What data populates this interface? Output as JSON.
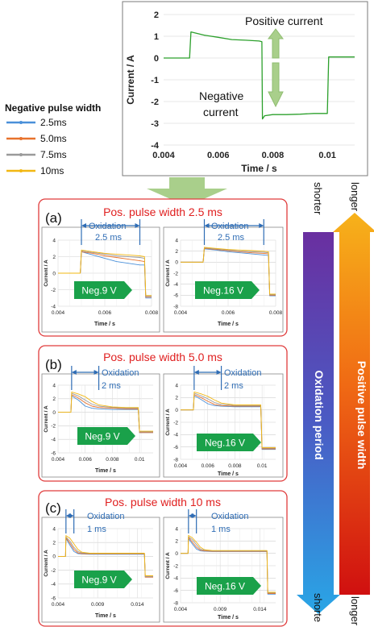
{
  "figure": {
    "legend": {
      "title": "Negative pulse width",
      "items": [
        {
          "label": "2.5ms",
          "color": "#4a90d9"
        },
        {
          "label": "5.0ms",
          "color": "#e8722c"
        },
        {
          "label": "7.5ms",
          "color": "#9a9a9a"
        },
        {
          "label": "10ms",
          "color": "#f2b712"
        }
      ]
    },
    "top_annotations": {
      "positive": "Positive current",
      "negative_line1": "Negative",
      "negative_line2": "current"
    },
    "panels": [
      {
        "letter": "(a)",
        "title": "Pos. pulse width 2.5 ms",
        "oxidation_label": "Oxidation",
        "oxidation_value": "2.5 ms",
        "charts": [
          {
            "callout": "Neg.9 V"
          },
          {
            "callout": "Neg.16 V"
          }
        ]
      },
      {
        "letter": "(b)",
        "title": "Pos. pulse width 5.0 ms",
        "oxidation_label": "Oxidation",
        "oxidation_value": "2 ms",
        "charts": [
          {
            "callout": "Neg.9 V"
          },
          {
            "callout": "Neg.16 V"
          }
        ]
      },
      {
        "letter": "(c)",
        "title": "Pos. pulse width 10 ms",
        "oxidation_label": "Oxidation",
        "oxidation_value": "1 ms",
        "charts": [
          {
            "callout": "Neg.9 V"
          },
          {
            "callout": "Neg.16 V"
          }
        ]
      }
    ],
    "arrows": {
      "left": {
        "label": "Oxidation period",
        "top": "shorter",
        "bottom": "shorte"
      },
      "right": {
        "label": "Positive pulse width",
        "top": "longer",
        "bottom": "longer"
      }
    },
    "colors": {
      "panel_border": "#e03c3c",
      "title_red": "#e02020",
      "oxidation_blue": "#2f6db5",
      "callout_green": "#1aa14a",
      "main_trace": "#2ca02c"
    }
  },
  "chart_data": [
    {
      "id": "main",
      "type": "line",
      "xlabel": "Time / s",
      "ylabel": "Current / A",
      "xlim": [
        0.004,
        0.011
      ],
      "ylim": [
        -4,
        2
      ],
      "xticks": [
        "0.004",
        "0.006",
        "0.008",
        "0.01"
      ],
      "yticks": [
        "-4",
        "-3",
        "-2",
        "-1",
        "0",
        "1",
        "2"
      ],
      "grid": "horizontal",
      "series": [
        {
          "color": "#2ca02c",
          "x": [
            0.004,
            0.0049,
            0.00495,
            0.005,
            0.0055,
            0.006,
            0.0065,
            0.007,
            0.0075,
            0.0076,
            0.00762,
            0.0077,
            0.008,
            0.0085,
            0.009,
            0.0095,
            0.0099,
            0.01,
            0.01005,
            0.0105,
            0.011
          ],
          "y": [
            0.0,
            0.0,
            0.0,
            1.2,
            1.05,
            0.95,
            0.85,
            0.82,
            0.78,
            0.75,
            -2.8,
            -2.65,
            -2.6,
            -2.6,
            -2.58,
            -2.55,
            -2.55,
            -2.55,
            0.05,
            0.05,
            0.05
          ]
        }
      ]
    },
    {
      "id": "a1",
      "type": "line",
      "xlabel": "Time / s",
      "ylabel": "Current / A",
      "xlim": [
        0.004,
        0.008
      ],
      "ylim": [
        -4,
        4
      ],
      "xticks": [
        "0.004",
        "0.006",
        "0.008"
      ],
      "yticks": [
        "-4",
        "-2",
        "0",
        "2",
        "4"
      ],
      "grid": "both",
      "series": [
        {
          "name": "2.5ms",
          "color": "#4a90d9",
          "x": [
            0.004,
            0.00495,
            0.005,
            0.0055,
            0.006,
            0.0065,
            0.007,
            0.0075,
            0.0077,
            0.00775,
            0.008
          ],
          "y": [
            0,
            0,
            2.6,
            2.2,
            1.8,
            1.4,
            1.2,
            1.0,
            1.0,
            -3.0,
            -3.0
          ]
        },
        {
          "name": "5.0ms",
          "color": "#e8722c",
          "x": [
            0.004,
            0.00495,
            0.005,
            0.0055,
            0.006,
            0.0065,
            0.007,
            0.0075,
            0.0077,
            0.00775,
            0.008
          ],
          "y": [
            0,
            0,
            2.6,
            2.4,
            2.1,
            1.9,
            1.7,
            1.5,
            1.4,
            -2.9,
            -2.9
          ]
        },
        {
          "name": "7.5ms",
          "color": "#9a9a9a",
          "x": [
            0.004,
            0.00495,
            0.005,
            0.0055,
            0.006,
            0.0065,
            0.007,
            0.0075,
            0.0077,
            0.00775,
            0.008
          ],
          "y": [
            0,
            0,
            2.7,
            2.5,
            2.3,
            2.1,
            2.0,
            1.9,
            1.8,
            -2.8,
            -2.8
          ]
        },
        {
          "name": "10ms",
          "color": "#f2b712",
          "x": [
            0.004,
            0.00495,
            0.005,
            0.0055,
            0.006,
            0.0065,
            0.007,
            0.0075,
            0.0077,
            0.00775,
            0.008
          ],
          "y": [
            0,
            0,
            2.8,
            2.6,
            2.4,
            2.3,
            2.2,
            2.1,
            2.0,
            -2.7,
            -2.7
          ]
        }
      ]
    },
    {
      "id": "a2",
      "type": "line",
      "xlabel": "Time / s",
      "ylabel": "Current / A",
      "xlim": [
        0.004,
        0.008
      ],
      "ylim": [
        -8,
        4
      ],
      "xticks": [
        "0.004",
        "0.006",
        "0.008"
      ],
      "yticks": [
        "-8",
        "-6",
        "-4",
        "-2",
        "0",
        "2",
        "4"
      ],
      "grid": "both",
      "series": [
        {
          "name": "2.5ms",
          "color": "#4a90d9",
          "x": [
            0.004,
            0.00495,
            0.005,
            0.0055,
            0.006,
            0.0065,
            0.007,
            0.0075,
            0.0077,
            0.00775,
            0.008
          ],
          "y": [
            0,
            0,
            2.4,
            2.2,
            1.9,
            1.7,
            1.5,
            1.3,
            1.2,
            -6.1,
            -6.1
          ]
        },
        {
          "name": "5.0ms",
          "color": "#e8722c",
          "x": [
            0.004,
            0.00495,
            0.005,
            0.0055,
            0.006,
            0.0065,
            0.007,
            0.0075,
            0.0077,
            0.00775,
            0.008
          ],
          "y": [
            0,
            0,
            2.5,
            2.3,
            2.1,
            1.9,
            1.7,
            1.6,
            1.5,
            -6.0,
            -6.0
          ]
        },
        {
          "name": "7.5ms",
          "color": "#9a9a9a",
          "x": [
            0.004,
            0.00495,
            0.005,
            0.0055,
            0.006,
            0.0065,
            0.007,
            0.0075,
            0.0077,
            0.00775,
            0.008
          ],
          "y": [
            0,
            0,
            2.6,
            2.4,
            2.2,
            2.0,
            1.9,
            1.8,
            1.7,
            -5.9,
            -5.9
          ]
        },
        {
          "name": "10ms",
          "color": "#f2b712",
          "x": [
            0.004,
            0.00495,
            0.005,
            0.0055,
            0.006,
            0.0065,
            0.007,
            0.0075,
            0.0077,
            0.00775,
            0.008
          ],
          "y": [
            0,
            0,
            2.7,
            2.5,
            2.3,
            2.2,
            2.1,
            2.0,
            1.9,
            -5.8,
            -5.8
          ]
        }
      ]
    },
    {
      "id": "b1",
      "type": "line",
      "xlabel": "Time / s",
      "ylabel": "Current / A",
      "xlim": [
        0.004,
        0.011
      ],
      "ylim": [
        -6,
        4
      ],
      "xticks": [
        "0.004",
        "0.006",
        "0.008",
        "0.01"
      ],
      "yticks": [
        "-6",
        "-4",
        "-2",
        "0",
        "2",
        "4"
      ],
      "grid": "both",
      "series": [
        {
          "name": "2.5ms",
          "color": "#4a90d9",
          "x": [
            0.004,
            0.00495,
            0.005,
            0.0055,
            0.006,
            0.0065,
            0.007,
            0.008,
            0.009,
            0.0099,
            0.01,
            0.011
          ],
          "y": [
            0,
            0,
            2.4,
            1.8,
            0.9,
            0.6,
            0.5,
            0.4,
            0.4,
            0.4,
            -3.0,
            -3.0
          ]
        },
        {
          "name": "5.0ms",
          "color": "#e8722c",
          "x": [
            0.004,
            0.00495,
            0.005,
            0.0055,
            0.006,
            0.0065,
            0.007,
            0.008,
            0.009,
            0.0099,
            0.01,
            0.011
          ],
          "y": [
            0,
            0,
            2.6,
            2.1,
            1.4,
            0.9,
            0.7,
            0.6,
            0.5,
            0.5,
            -3.0,
            -3.0
          ]
        },
        {
          "name": "7.5ms",
          "color": "#9a9a9a",
          "x": [
            0.004,
            0.00495,
            0.005,
            0.0055,
            0.006,
            0.0065,
            0.007,
            0.008,
            0.009,
            0.0099,
            0.01,
            0.011
          ],
          "y": [
            0,
            0,
            2.8,
            2.4,
            1.8,
            1.2,
            0.9,
            0.7,
            0.6,
            0.6,
            -2.9,
            -2.9
          ]
        },
        {
          "name": "10ms",
          "color": "#f2b712",
          "x": [
            0.004,
            0.00495,
            0.005,
            0.0055,
            0.006,
            0.0065,
            0.007,
            0.008,
            0.009,
            0.0099,
            0.01,
            0.011
          ],
          "y": [
            0,
            0,
            3.0,
            2.7,
            2.3,
            1.6,
            1.1,
            0.8,
            0.7,
            0.7,
            -2.8,
            -2.8
          ]
        }
      ]
    },
    {
      "id": "b2",
      "type": "line",
      "xlabel": "Time / s",
      "ylabel": "Current / A",
      "xlim": [
        0.004,
        0.011
      ],
      "ylim": [
        -8,
        4
      ],
      "xticks": [
        "0.004",
        "0.006",
        "0.008",
        "0.01"
      ],
      "yticks": [
        "-8",
        "-6",
        "-4",
        "-2",
        "0",
        "2",
        "4"
      ],
      "grid": "both",
      "series": [
        {
          "name": "2.5ms",
          "color": "#4a90d9",
          "x": [
            0.004,
            0.00495,
            0.005,
            0.0055,
            0.006,
            0.0065,
            0.007,
            0.008,
            0.009,
            0.0099,
            0.01,
            0.011
          ],
          "y": [
            0,
            0,
            2.3,
            1.7,
            1.0,
            0.7,
            0.6,
            0.5,
            0.5,
            0.5,
            -6.4,
            -6.4
          ]
        },
        {
          "name": "5.0ms",
          "color": "#e8722c",
          "x": [
            0.004,
            0.00495,
            0.005,
            0.0055,
            0.006,
            0.0065,
            0.007,
            0.008,
            0.009,
            0.0099,
            0.01,
            0.011
          ],
          "y": [
            0,
            0,
            2.5,
            2.0,
            1.4,
            0.9,
            0.7,
            0.6,
            0.6,
            0.6,
            -6.3,
            -6.3
          ]
        },
        {
          "name": "7.5ms",
          "color": "#9a9a9a",
          "x": [
            0.004,
            0.00495,
            0.005,
            0.0055,
            0.006,
            0.0065,
            0.007,
            0.008,
            0.009,
            0.0099,
            0.01,
            0.011
          ],
          "y": [
            0,
            0,
            2.7,
            2.3,
            1.8,
            1.2,
            0.9,
            0.7,
            0.7,
            0.7,
            -6.2,
            -6.2
          ]
        },
        {
          "name": "10ms",
          "color": "#f2b712",
          "x": [
            0.004,
            0.00495,
            0.005,
            0.0055,
            0.006,
            0.0065,
            0.007,
            0.008,
            0.009,
            0.0099,
            0.01,
            0.011
          ],
          "y": [
            0,
            0,
            2.9,
            2.6,
            2.2,
            1.6,
            1.1,
            0.8,
            0.8,
            0.8,
            -6.1,
            -6.1
          ]
        }
      ]
    },
    {
      "id": "c1",
      "type": "line",
      "xlabel": "Time / s",
      "ylabel": "Current / A",
      "xlim": [
        0.004,
        0.016
      ],
      "ylim": [
        -6,
        4
      ],
      "xticks": [
        "0.004",
        "0.009",
        "0.014"
      ],
      "yticks": [
        "-6",
        "-4",
        "-2",
        "0",
        "2",
        "4"
      ],
      "grid": "both",
      "series": [
        {
          "name": "2.5ms",
          "color": "#4a90d9",
          "x": [
            0.004,
            0.00495,
            0.005,
            0.0055,
            0.006,
            0.0065,
            0.007,
            0.008,
            0.01,
            0.012,
            0.0149,
            0.015,
            0.016
          ],
          "y": [
            0,
            0,
            2.6,
            1.6,
            0.7,
            0.4,
            0.35,
            0.3,
            0.3,
            0.3,
            0.3,
            -3.0,
            -3.0
          ]
        },
        {
          "name": "5.0ms",
          "color": "#e8722c",
          "x": [
            0.004,
            0.00495,
            0.005,
            0.0055,
            0.006,
            0.0065,
            0.007,
            0.008,
            0.01,
            0.012,
            0.0149,
            0.015,
            0.016
          ],
          "y": [
            0,
            0,
            2.7,
            1.9,
            1.0,
            0.5,
            0.4,
            0.35,
            0.35,
            0.35,
            0.35,
            -3.0,
            -3.0
          ]
        },
        {
          "name": "7.5ms",
          "color": "#9a9a9a",
          "x": [
            0.004,
            0.00495,
            0.005,
            0.0055,
            0.006,
            0.0065,
            0.007,
            0.008,
            0.01,
            0.012,
            0.0149,
            0.015,
            0.016
          ],
          "y": [
            0,
            0,
            2.8,
            2.2,
            1.3,
            0.7,
            0.5,
            0.4,
            0.4,
            0.4,
            0.4,
            -2.9,
            -2.9
          ]
        },
        {
          "name": "10ms",
          "color": "#f2b712",
          "x": [
            0.004,
            0.00495,
            0.005,
            0.0055,
            0.006,
            0.0065,
            0.007,
            0.008,
            0.01,
            0.012,
            0.0149,
            0.015,
            0.016
          ],
          "y": [
            0,
            0,
            3.0,
            2.6,
            1.8,
            1.0,
            0.6,
            0.45,
            0.45,
            0.45,
            0.45,
            -2.8,
            -2.8
          ]
        }
      ]
    },
    {
      "id": "c2",
      "type": "line",
      "xlabel": "Time / s",
      "ylabel": "Current / A",
      "xlim": [
        0.004,
        0.016
      ],
      "ylim": [
        -8,
        4
      ],
      "xticks": [
        "0.004",
        "0.009",
        "0.014"
      ],
      "yticks": [
        "-8",
        "-6",
        "-4",
        "-2",
        "0",
        "2",
        "4"
      ],
      "grid": "both",
      "series": [
        {
          "name": "2.5ms",
          "color": "#4a90d9",
          "x": [
            0.004,
            0.00495,
            0.005,
            0.0055,
            0.006,
            0.0065,
            0.007,
            0.008,
            0.01,
            0.012,
            0.0149,
            0.015,
            0.016
          ],
          "y": [
            0,
            0,
            2.4,
            1.5,
            0.7,
            0.4,
            0.35,
            0.3,
            0.3,
            0.3,
            0.3,
            -6.6,
            -6.6
          ]
        },
        {
          "name": "5.0ms",
          "color": "#e8722c",
          "x": [
            0.004,
            0.00495,
            0.005,
            0.0055,
            0.006,
            0.0065,
            0.007,
            0.008,
            0.01,
            0.012,
            0.0149,
            0.015,
            0.016
          ],
          "y": [
            0,
            0,
            2.6,
            1.8,
            1.0,
            0.5,
            0.4,
            0.35,
            0.35,
            0.35,
            0.35,
            -6.5,
            -6.5
          ]
        },
        {
          "name": "7.5ms",
          "color": "#9a9a9a",
          "x": [
            0.004,
            0.00495,
            0.005,
            0.0055,
            0.006,
            0.0065,
            0.007,
            0.008,
            0.01,
            0.012,
            0.0149,
            0.015,
            0.016
          ],
          "y": [
            0,
            0,
            2.7,
            2.2,
            1.4,
            0.7,
            0.5,
            0.4,
            0.4,
            0.4,
            0.4,
            -6.4,
            -6.4
          ]
        },
        {
          "name": "10ms",
          "color": "#f2b712",
          "x": [
            0.004,
            0.00495,
            0.005,
            0.0055,
            0.006,
            0.0065,
            0.007,
            0.008,
            0.01,
            0.012,
            0.0149,
            0.015,
            0.016
          ],
          "y": [
            0,
            0,
            2.9,
            2.5,
            1.8,
            1.0,
            0.6,
            0.45,
            0.45,
            0.45,
            0.45,
            -6.3,
            -6.3
          ]
        }
      ]
    }
  ]
}
